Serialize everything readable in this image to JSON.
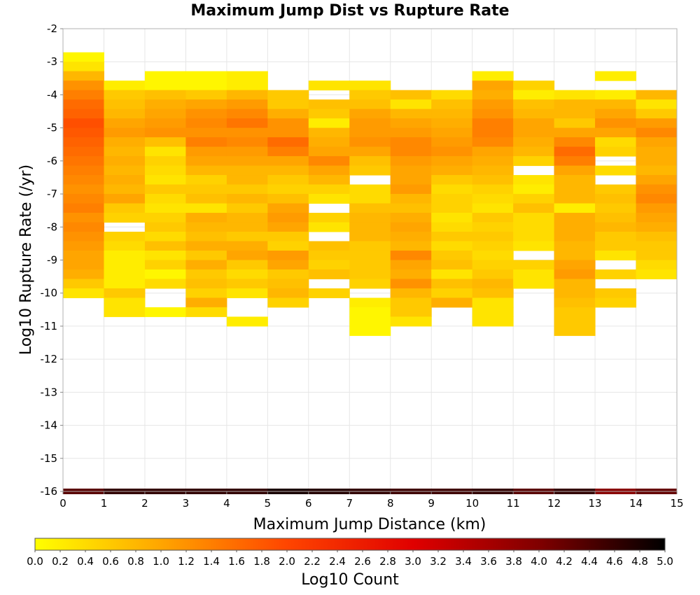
{
  "chart_data": {
    "type": "heatmap",
    "title": "Maximum Jump Dist vs Rupture Rate",
    "xlabel": "Maximum Jump Distance (km)",
    "ylabel": "Log10 Rupture Rate (/yr)",
    "xlim": [
      0,
      15
    ],
    "ylim": [
      -16,
      -2
    ],
    "x_ticks": [
      "0",
      "1",
      "2",
      "3",
      "4",
      "5",
      "6",
      "7",
      "8",
      "9",
      "10",
      "11",
      "12",
      "13",
      "14",
      "15"
    ],
    "y_ticks": [
      "-2",
      "-3",
      "-4",
      "-5",
      "-6",
      "-7",
      "-8",
      "-9",
      "-10",
      "-11",
      "-12",
      "-13",
      "-14",
      "-15",
      "-16"
    ],
    "grid": true,
    "x_bin_width": 1,
    "y_bin_height": 0.2857,
    "y_bins_top": -2.714,
    "zero_rate_row_y": -16,
    "colorbar": {
      "label": "Log10 Count",
      "range": [
        0,
        5
      ],
      "ticks": [
        "0.0",
        "0.2",
        "0.4",
        "0.6",
        "0.8",
        "1.0",
        "1.2",
        "1.4",
        "1.6",
        "1.8",
        "2.0",
        "2.2",
        "2.4",
        "2.6",
        "2.8",
        "3.0",
        "3.2",
        "3.4",
        "3.6",
        "3.8",
        "4.0",
        "4.2",
        "4.4",
        "4.6",
        "4.8",
        "5.0"
      ],
      "colors": [
        "#ffff00",
        "#ffa500",
        "#ff4500",
        "#e00000",
        "#800000",
        "#000000"
      ]
    },
    "columns": [
      {
        "x0": 0,
        "first_row": 0,
        "values": [
          0.1,
          0.3,
          0.8,
          1.2,
          1.4,
          1.6,
          1.7,
          1.9,
          1.8,
          1.7,
          1.6,
          1.5,
          1.4,
          1.3,
          1.2,
          1.3,
          1.4,
          1.2,
          1.3,
          1.2,
          1.1,
          1.0,
          1.0,
          0.9,
          0.6,
          0.3
        ],
        "zero_rate": 4.3
      },
      {
        "x0": 1,
        "first_row": 3,
        "values": [
          0.2,
          0.6,
          0.7,
          0.8,
          1.0,
          1.1,
          0.9,
          0.8,
          0.9,
          0.8,
          0.9,
          0.8,
          1.0,
          0.6,
          0.5,
          null,
          0.5,
          0.4,
          0.2,
          0.2,
          0.2,
          0.2,
          0.6,
          0.3,
          0.3
        ],
        "zero_rate": 4.6
      },
      {
        "x0": 2,
        "first_row": 2,
        "values": [
          0.1,
          0.1,
          0.7,
          0.9,
          1.0,
          1.1,
          1.2,
          0.7,
          0.3,
          0.5,
          0.4,
          0.3,
          0.6,
          0.4,
          0.3,
          0.5,
          0.6,
          0.4,
          0.7,
          0.3,
          0.5,
          0.1,
          0.4,
          null,
          null,
          0.1
        ],
        "zero_rate": 4.6
      },
      {
        "x0": 3,
        "first_row": 2,
        "values": [
          0.1,
          0.1,
          0.6,
          1.0,
          1.2,
          1.3,
          1.2,
          1.4,
          1.1,
          1.0,
          0.8,
          0.5,
          0.6,
          0.7,
          0.3,
          0.9,
          0.8,
          0.7,
          0.9,
          0.6,
          0.9,
          0.6,
          0.7,
          0.5,
          0.9,
          0.4
        ],
        "zero_rate": 4.6
      },
      {
        "x0": 4,
        "first_row": 2,
        "values": [
          0.2,
          0.2,
          0.8,
          1.1,
          1.3,
          1.5,
          1.2,
          1.3,
          1.1,
          1.0,
          0.8,
          0.8,
          0.6,
          0.8,
          0.6,
          0.8,
          0.8,
          0.6,
          0.9,
          1.0,
          0.6,
          0.4,
          0.6,
          0.3,
          null,
          null,
          0.2
        ],
        "zero_rate": 4.6
      },
      {
        "x0": 5,
        "first_row": 4,
        "values": [
          0.6,
          0.6,
          0.9,
          1.2,
          1.2,
          1.6,
          1.4,
          1.0,
          0.8,
          0.6,
          0.5,
          0.7,
          1.0,
          1.1,
          1.0,
          0.6,
          0.5,
          1.1,
          1.0,
          0.6,
          0.7,
          0.8,
          0.5
        ],
        "zero_rate": 4.8
      },
      {
        "x0": 6,
        "first_row": 3,
        "values": [
          0.3,
          null,
          0.7,
          0.6,
          0.2,
          0.8,
          0.9,
          1.0,
          1.3,
          1.0,
          0.8,
          0.5,
          0.3,
          null,
          0.5,
          0.3,
          null,
          0.7,
          0.6,
          0.5,
          0.7,
          null,
          0.5
        ],
        "zero_rate": 4.7
      },
      {
        "x0": 7,
        "first_row": 3,
        "values": [
          0.3,
          0.6,
          0.7,
          1.0,
          1.1,
          1.1,
          1.2,
          1.0,
          0.7,
          0.6,
          null,
          0.4,
          0.4,
          0.7,
          0.8,
          0.8,
          0.8,
          0.6,
          0.6,
          0.6,
          0.6,
          0.5,
          null,
          0.2,
          0.1,
          0.1,
          0.1
        ],
        "zero_rate": 4.6
      },
      {
        "x0": 8,
        "first_row": 4,
        "values": [
          0.7,
          0.3,
          0.8,
          1.0,
          1.1,
          1.3,
          1.3,
          1.1,
          1.0,
          1.0,
          1.1,
          0.8,
          0.7,
          0.9,
          1.0,
          0.9,
          0.8,
          1.3,
          1.0,
          0.9,
          1.2,
          0.8,
          0.6,
          0.6,
          0.3
        ],
        "zero_rate": 4.5
      },
      {
        "x0": 9,
        "first_row": 4,
        "values": [
          0.4,
          0.7,
          0.8,
          0.9,
          1.0,
          1.1,
          1.2,
          1.0,
          0.9,
          0.6,
          0.4,
          0.5,
          0.5,
          0.3,
          0.4,
          0.6,
          0.4,
          0.6,
          0.7,
          0.3,
          0.7,
          0.5,
          0.9,
          null
        ],
        "zero_rate": 4.5
      },
      {
        "x0": 10,
        "first_row": 2,
        "values": [
          0.2,
          1.0,
          0.9,
          1.1,
          1.2,
          1.4,
          1.4,
          1.3,
          1.0,
          0.9,
          0.8,
          0.7,
          0.5,
          0.4,
          0.3,
          0.6,
          0.5,
          0.6,
          0.5,
          0.4,
          0.5,
          0.6,
          0.8,
          0.7,
          0.3,
          0.3,
          0.3
        ],
        "zero_rate": 4.6
      },
      {
        "x0": 11,
        "first_row": 3,
        "values": [
          0.5,
          0.2,
          0.7,
          0.8,
          1.0,
          1.0,
          0.9,
          0.8,
          0.5,
          null,
          0.3,
          0.2,
          0.5,
          0.7,
          0.4,
          0.4,
          0.4,
          0.3,
          null,
          0.5,
          0.3,
          0.3
        ],
        "zero_rate": 4.3
      },
      {
        "x0": 12,
        "first_row": 4,
        "values": [
          0.3,
          0.8,
          0.8,
          0.6,
          1.0,
          1.3,
          1.6,
          1.4,
          1.0,
          0.8,
          0.8,
          0.8,
          0.2,
          0.9,
          0.9,
          0.9,
          0.8,
          0.8,
          1.0,
          1.1,
          0.8,
          0.8,
          0.7,
          0.6,
          0.6,
          0.6
        ],
        "zero_rate": 4.6
      },
      {
        "x0": 13,
        "first_row": 2,
        "values": [
          0.2,
          null,
          0.2,
          0.8,
          1.0,
          1.2,
          1.0,
          0.4,
          0.5,
          null,
          0.4,
          null,
          0.6,
          0.7,
          0.6,
          0.7,
          0.8,
          0.6,
          0.6,
          0.3,
          null,
          0.5,
          null,
          0.6,
          0.5
        ],
        "zero_rate": 3.9
      },
      {
        "x0": 14,
        "first_row": 4,
        "values": [
          0.8,
          0.3,
          0.6,
          1.1,
          1.3,
          1.0,
          0.9,
          0.9,
          0.8,
          1.0,
          1.2,
          1.3,
          1.1,
          1.0,
          0.9,
          0.7,
          0.6,
          0.6,
          0.4,
          0.3
        ],
        "zero_rate": 4.2
      }
    ]
  }
}
